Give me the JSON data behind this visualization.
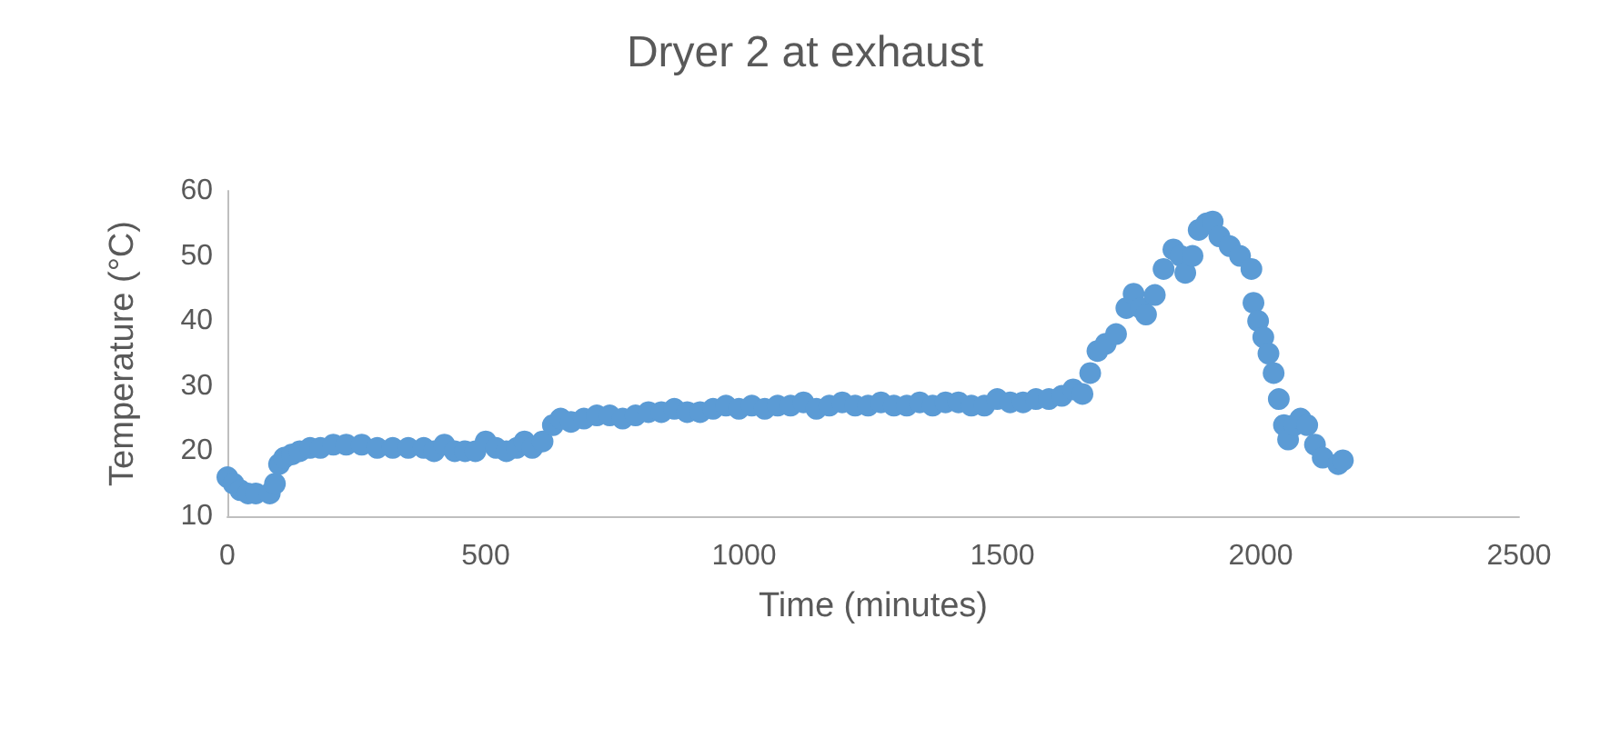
{
  "chart_data": {
    "type": "scatter",
    "title": "Dryer 2 at exhaust",
    "xlabel": "Time (minutes)",
    "ylabel": "Temperature (°C)",
    "xlim": [
      0,
      2500
    ],
    "xticks": [
      0,
      500,
      1000,
      1500,
      2000,
      2500
    ],
    "ylim": [
      10,
      60
    ],
    "yticks": [
      10,
      20,
      30,
      40,
      50,
      60
    ],
    "grid": false,
    "marker": "circle",
    "series": [
      {
        "color": "#5b9bd5",
        "x": [
          0,
          12,
          25,
          40,
          55,
          82,
          92,
          100,
          110,
          125,
          140,
          160,
          180,
          205,
          230,
          260,
          290,
          320,
          350,
          380,
          400,
          420,
          440,
          460,
          480,
          500,
          520,
          540,
          560,
          575,
          590,
          610,
          630,
          645,
          665,
          690,
          715,
          740,
          765,
          790,
          815,
          840,
          865,
          890,
          915,
          940,
          965,
          990,
          1015,
          1040,
          1065,
          1090,
          1115,
          1140,
          1165,
          1190,
          1215,
          1240,
          1265,
          1290,
          1315,
          1340,
          1365,
          1390,
          1415,
          1440,
          1465,
          1490,
          1515,
          1540,
          1565,
          1590,
          1615,
          1637,
          1655,
          1670,
          1684,
          1700,
          1720,
          1740,
          1754,
          1768,
          1778,
          1795,
          1812,
          1831,
          1845,
          1854,
          1868,
          1880,
          1895,
          1907,
          1920,
          1940,
          1960,
          1982,
          1986,
          1995,
          2005,
          2015,
          2025,
          2035,
          2045,
          2053,
          2065,
          2077,
          2090,
          2105,
          2120,
          2150,
          2159
        ],
        "values": [
          16,
          15,
          14,
          13.5,
          13.5,
          13.5,
          15,
          18,
          19,
          19.5,
          20,
          20.5,
          20.5,
          21,
          21,
          21,
          20.5,
          20.5,
          20.5,
          20.5,
          20,
          21,
          20,
          20,
          20,
          21.5,
          20.5,
          20,
          20.5,
          21.5,
          20.5,
          21.5,
          24,
          25,
          24.5,
          25,
          25.5,
          25.5,
          25,
          25.5,
          26,
          26,
          26.5,
          26,
          26,
          26.5,
          27,
          26.5,
          27,
          26.5,
          27,
          27,
          27.5,
          26.5,
          27,
          27.5,
          27,
          27,
          27.5,
          27,
          27,
          27.5,
          27,
          27.5,
          27.5,
          27,
          27,
          28,
          27.5,
          27.5,
          28,
          28,
          28.5,
          29.5,
          28.8,
          32,
          35.4,
          36.5,
          38,
          42,
          44.2,
          42,
          41,
          44,
          48,
          51,
          50,
          47.4,
          50,
          54,
          55,
          55.3,
          53,
          51.5,
          50,
          48,
          42.8,
          40,
          37.5,
          35,
          32,
          28,
          24,
          21.8,
          24,
          25,
          24,
          21,
          19,
          18,
          18.6
        ]
      }
    ]
  }
}
